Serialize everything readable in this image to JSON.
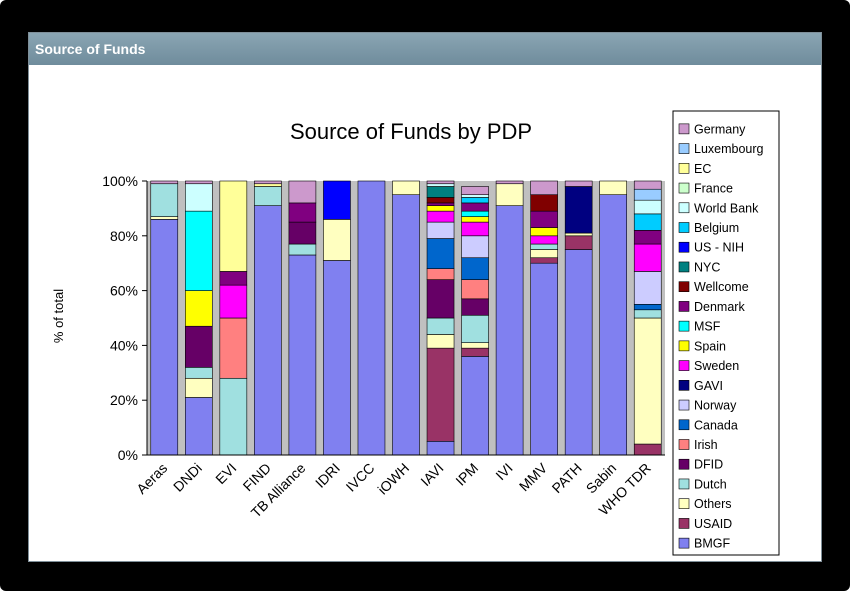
{
  "panel": {
    "header": "Source of Funds"
  },
  "chart_data": {
    "type": "bar",
    "stacked": true,
    "title": "Source of Funds by PDP",
    "ylabel": "% of total",
    "xlabel": "",
    "ylim": [
      0,
      100
    ],
    "yticks": [
      "0%",
      "20%",
      "40%",
      "60%",
      "80%",
      "100%"
    ],
    "grid": false,
    "legend_position": "right",
    "categories": [
      "Aeras",
      "DNDi",
      "EVI",
      "FIND",
      "TB Alliance",
      "IDRI",
      "IVCC",
      "iOWH",
      "IAVI",
      "IPM",
      "IVI",
      "MMV",
      "PATH",
      "Sabin",
      "WHO TDR"
    ],
    "legend_order": [
      "Germany",
      "Luxembourg",
      "EC",
      "France",
      "World Bank",
      "Belgium",
      "US - NIH",
      "NYC",
      "Wellcome",
      "Denmark",
      "MSF",
      "Spain",
      "Sweden",
      "GAVI",
      "Norway",
      "Canada",
      "Irish",
      "DFID",
      "Dutch",
      "Others",
      "USAID",
      "BMGF"
    ],
    "series": [
      {
        "name": "BMGF",
        "color": "#8080f0",
        "values": [
          86,
          21,
          0,
          91,
          73,
          71,
          100,
          95,
          5,
          36,
          91,
          70,
          75,
          95,
          0
        ]
      },
      {
        "name": "USAID",
        "color": "#993366",
        "values": [
          0,
          0,
          0,
          0,
          0,
          0,
          0,
          0,
          34,
          3,
          0,
          2,
          5,
          0,
          4
        ]
      },
      {
        "name": "Others",
        "color": "#ffffc0",
        "values": [
          1,
          7,
          0,
          0,
          0,
          15,
          0,
          5,
          5,
          2,
          8,
          3,
          1,
          5,
          46
        ]
      },
      {
        "name": "Dutch",
        "color": "#a0e0e0",
        "values": [
          12,
          4,
          28,
          7,
          4,
          0,
          0,
          0,
          6,
          10,
          0,
          2,
          0,
          0,
          3
        ]
      },
      {
        "name": "DFID",
        "color": "#660066",
        "values": [
          0,
          15,
          0,
          0,
          8,
          0,
          0,
          0,
          14,
          6,
          0,
          0,
          0,
          0,
          0
        ]
      },
      {
        "name": "Irish",
        "color": "#ff8080",
        "values": [
          0,
          0,
          22,
          0,
          0,
          0,
          0,
          0,
          4,
          7,
          0,
          0,
          0,
          0,
          0
        ]
      },
      {
        "name": "Canada",
        "color": "#0066cc",
        "values": [
          0,
          0,
          0,
          0,
          0,
          0,
          0,
          0,
          11,
          8,
          0,
          0,
          0,
          0,
          2
        ]
      },
      {
        "name": "Norway",
        "color": "#ccccff",
        "values": [
          0,
          0,
          0,
          0,
          0,
          0,
          0,
          0,
          6,
          8,
          0,
          0,
          0,
          0,
          12
        ]
      },
      {
        "name": "GAVI",
        "color": "#000080",
        "values": [
          0,
          0,
          0,
          0,
          0,
          0,
          0,
          0,
          0,
          0,
          0,
          0,
          17,
          0,
          0
        ]
      },
      {
        "name": "Sweden",
        "color": "#ff00ff",
        "values": [
          0,
          0,
          12,
          0,
          0,
          0,
          0,
          0,
          4,
          5,
          0,
          3,
          0,
          0,
          10
        ]
      },
      {
        "name": "Spain",
        "color": "#ffff00",
        "values": [
          0,
          13,
          0,
          0,
          0,
          0,
          0,
          0,
          2,
          2,
          0,
          3,
          0,
          0,
          0
        ]
      },
      {
        "name": "MSF",
        "color": "#00ffff",
        "values": [
          0,
          29,
          0,
          0,
          0,
          0,
          0,
          0,
          0,
          2,
          0,
          0,
          0,
          0,
          0
        ]
      },
      {
        "name": "Denmark",
        "color": "#800080",
        "values": [
          0,
          0,
          5,
          0,
          7,
          0,
          0,
          0,
          1,
          3,
          0,
          6,
          0,
          0,
          5
        ]
      },
      {
        "name": "Wellcome",
        "color": "#800000",
        "values": [
          0,
          0,
          0,
          0,
          0,
          0,
          0,
          0,
          2,
          0,
          0,
          6,
          0,
          0,
          0
        ]
      },
      {
        "name": "NYC",
        "color": "#008080",
        "values": [
          0,
          0,
          0,
          0,
          0,
          0,
          0,
          0,
          4,
          0,
          0,
          0,
          0,
          0,
          0
        ]
      },
      {
        "name": "US - NIH",
        "color": "#0000ff",
        "values": [
          0,
          0,
          0,
          0,
          0,
          14,
          0,
          0,
          0,
          0,
          0,
          0,
          0,
          0,
          0
        ]
      },
      {
        "name": "Belgium",
        "color": "#00ccff",
        "values": [
          0,
          0,
          0,
          0,
          0,
          0,
          0,
          0,
          0,
          2,
          0,
          0,
          0,
          0,
          6
        ]
      },
      {
        "name": "World Bank",
        "color": "#ccffff",
        "values": [
          0,
          10,
          0,
          0,
          0,
          0,
          0,
          0,
          1,
          1,
          0,
          0,
          0,
          0,
          5
        ]
      },
      {
        "name": "France",
        "color": "#ccffcc",
        "values": [
          0,
          0,
          0,
          0,
          0,
          0,
          0,
          0,
          0,
          0,
          0,
          0,
          0,
          0,
          0
        ]
      },
      {
        "name": "EC",
        "color": "#ffff99",
        "values": [
          0,
          0,
          33,
          1,
          0,
          0,
          0,
          0,
          0,
          0,
          0,
          0,
          0,
          0,
          0
        ]
      },
      {
        "name": "Luxembourg",
        "color": "#99ccff",
        "values": [
          0,
          0,
          0,
          0,
          0,
          0,
          0,
          0,
          0,
          0,
          0,
          0,
          0,
          0,
          4
        ]
      },
      {
        "name": "Germany",
        "color": "#cc99cc",
        "values": [
          1,
          1,
          0,
          1,
          8,
          0,
          0,
          0,
          1,
          3,
          1,
          5,
          2,
          0,
          3
        ]
      }
    ]
  }
}
